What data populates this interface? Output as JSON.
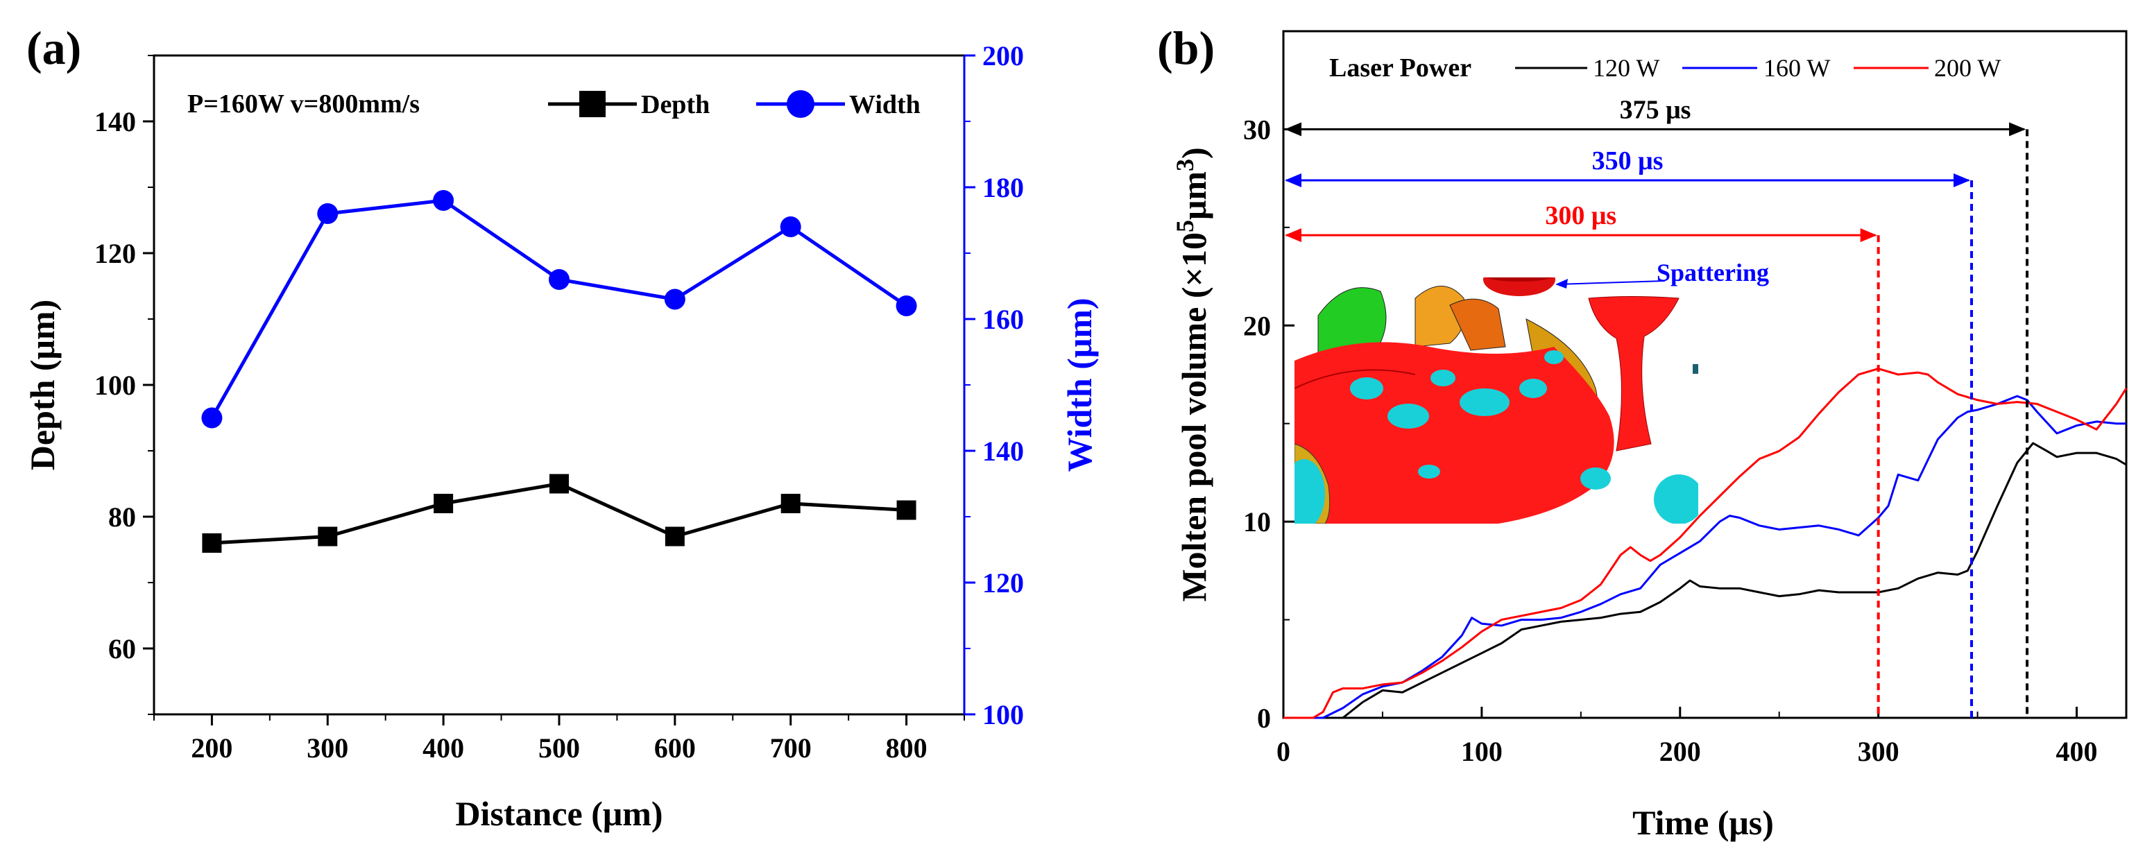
{
  "chart_data": [
    {
      "panel_label": "(a)",
      "type": "line",
      "annotation": "P=160W  v=800mm/s",
      "xlabel": "Distance (μm)",
      "ylabel": "Depth (μm)",
      "y2label": "Width (μm)",
      "xlim": [
        150,
        850
      ],
      "ylim": [
        50,
        150
      ],
      "y2lim": [
        100,
        200
      ],
      "x": [
        200,
        300,
        400,
        500,
        600,
        700,
        800
      ],
      "xticks": [
        "200",
        "300",
        "400",
        "500",
        "600",
        "700",
        "800"
      ],
      "yticks": [
        "60",
        "80",
        "100",
        "120",
        "140"
      ],
      "y2ticks": [
        "100",
        "120",
        "140",
        "160",
        "180",
        "200"
      ],
      "series": [
        {
          "name": "Depth",
          "axis": "left",
          "marker": "square",
          "color": "#000000",
          "values": [
            76,
            77,
            82,
            85,
            77,
            82,
            81
          ]
        },
        {
          "name": "Width",
          "axis": "right",
          "marker": "circle",
          "color": "#0000ff",
          "values": [
            145,
            176,
            178,
            166,
            163,
            174,
            162
          ]
        }
      ],
      "legend_position": "top-right"
    },
    {
      "panel_label": "(b)",
      "type": "line",
      "xlabel": "Time (μs)",
      "ylabel_main": "Molten pool volume (×10",
      "ylabel_sup1": "5",
      "ylabel_mid": "μm",
      "ylabel_sup2": "3",
      "ylabel_end": ")",
      "xlim": [
        0,
        425
      ],
      "ylim": [
        0,
        35
      ],
      "xticks": [
        "0",
        "100",
        "200",
        "300",
        "400"
      ],
      "yticks": [
        "0",
        "10",
        "20",
        "30"
      ],
      "legend_title": "Laser Power",
      "inset_label": "Spattering",
      "series": [
        {
          "name": "120 W",
          "color": "#000000",
          "x": [
            0,
            30,
            40,
            50,
            60,
            70,
            80,
            90,
            100,
            110,
            120,
            130,
            140,
            150,
            160,
            170,
            180,
            190,
            200,
            205,
            210,
            220,
            230,
            240,
            250,
            260,
            270,
            280,
            290,
            300,
            310,
            320,
            330,
            340,
            345,
            350,
            360,
            370,
            378,
            385,
            390,
            400,
            410,
            420,
            425
          ],
          "y": [
            0,
            0,
            0.8,
            1.4,
            1.3,
            1.8,
            2.3,
            2.8,
            3.3,
            3.8,
            4.5,
            4.7,
            4.9,
            5.0,
            5.1,
            5.3,
            5.4,
            5.9,
            6.6,
            7.0,
            6.7,
            6.6,
            6.6,
            6.4,
            6.2,
            6.3,
            6.5,
            6.4,
            6.4,
            6.4,
            6.6,
            7.1,
            7.4,
            7.3,
            7.5,
            8.5,
            10.8,
            13.0,
            14.0,
            13.6,
            13.3,
            13.5,
            13.5,
            13.2,
            12.9
          ]
        },
        {
          "name": "160 W",
          "color": "#0000ff",
          "x": [
            0,
            20,
            30,
            40,
            50,
            60,
            70,
            80,
            90,
            95,
            100,
            110,
            120,
            130,
            140,
            150,
            160,
            170,
            180,
            190,
            200,
            210,
            220,
            225,
            230,
            240,
            250,
            260,
            270,
            280,
            290,
            300,
            305,
            310,
            320,
            330,
            340,
            345,
            350,
            360,
            370,
            375,
            380,
            390,
            400,
            410,
            420,
            425
          ],
          "y": [
            0,
            0,
            0.5,
            1.2,
            1.6,
            1.8,
            2.4,
            3.1,
            4.2,
            5.1,
            4.8,
            4.7,
            5.0,
            5.0,
            5.1,
            5.4,
            5.8,
            6.3,
            6.6,
            7.8,
            8.4,
            9.0,
            10.0,
            10.3,
            10.2,
            9.8,
            9.6,
            9.7,
            9.8,
            9.6,
            9.3,
            10.2,
            10.8,
            12.4,
            12.1,
            14.2,
            15.3,
            15.6,
            15.7,
            16.0,
            16.4,
            16.2,
            15.6,
            14.5,
            14.9,
            15.1,
            15.0,
            15.0
          ]
        },
        {
          "name": "200 W",
          "color": "#ff0000",
          "x": [
            0,
            15,
            20,
            25,
            30,
            40,
            50,
            60,
            70,
            80,
            90,
            100,
            110,
            120,
            130,
            140,
            150,
            160,
            170,
            175,
            180,
            185,
            190,
            200,
            210,
            220,
            230,
            240,
            250,
            260,
            270,
            280,
            290,
            300,
            310,
            320,
            325,
            330,
            340,
            350,
            360,
            370,
            380,
            390,
            400,
            410,
            420,
            425
          ],
          "y": [
            0,
            0,
            0.3,
            1.3,
            1.5,
            1.5,
            1.7,
            1.8,
            2.3,
            2.9,
            3.6,
            4.4,
            5.0,
            5.2,
            5.4,
            5.6,
            6.0,
            6.8,
            8.3,
            8.7,
            8.3,
            8.0,
            8.3,
            9.2,
            10.3,
            11.3,
            12.3,
            13.2,
            13.6,
            14.3,
            15.5,
            16.6,
            17.5,
            17.8,
            17.5,
            17.6,
            17.5,
            17.1,
            16.5,
            16.2,
            16.0,
            16.1,
            16.0,
            15.6,
            15.2,
            14.7,
            16.0,
            16.8
          ]
        }
      ],
      "markers": [
        {
          "label": "375 μs",
          "t": 375,
          "y": 30,
          "color": "#000000"
        },
        {
          "label": "350 μs",
          "t": 347,
          "y": 27.4,
          "color": "#0000ff"
        },
        {
          "label": "300 μs",
          "t": 300,
          "y": 24.6,
          "color": "#ff0000"
        }
      ]
    }
  ]
}
